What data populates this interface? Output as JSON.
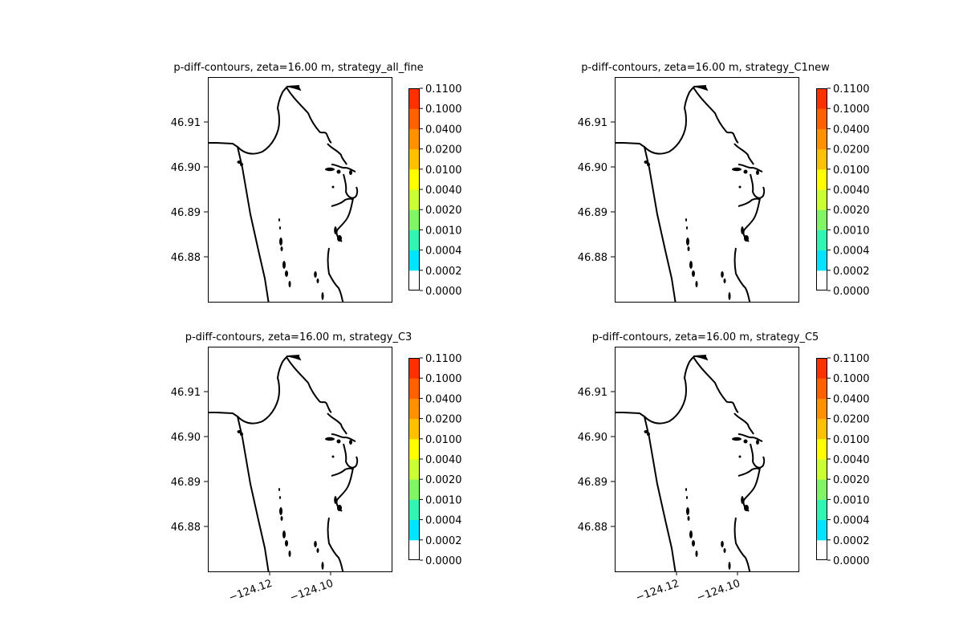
{
  "chart_data": [
    {
      "type": "contour",
      "title": "p-diff-contours, zeta=16.00 m, strategy_all_fine",
      "yticks": [
        "46.91",
        "46.90",
        "46.89",
        "46.88"
      ],
      "ytick_values": [
        46.91,
        46.9,
        46.89,
        46.88
      ],
      "xticks": [],
      "xtick_values": [],
      "ylim": [
        46.8702,
        46.9198
      ],
      "xlim": [
        -124.1395,
        -124.0795
      ],
      "filled_values": []
    },
    {
      "type": "contour",
      "title": "p-diff-contours, zeta=16.00 m, strategy_C1new",
      "yticks": [
        "46.91",
        "46.90",
        "46.89",
        "46.88"
      ],
      "ytick_values": [
        46.91,
        46.9,
        46.89,
        46.88
      ],
      "xticks": [],
      "xtick_values": [],
      "ylim": [
        46.8702,
        46.9198
      ],
      "xlim": [
        -124.1395,
        -124.0795
      ],
      "filled_values": []
    },
    {
      "type": "contour",
      "title": "p-diff-contours, zeta=16.00 m, strategy_C3",
      "yticks": [
        "46.91",
        "46.90",
        "46.89",
        "46.88"
      ],
      "ytick_values": [
        46.91,
        46.9,
        46.89,
        46.88
      ],
      "xticks": [
        "−124.12",
        "−124.10"
      ],
      "xtick_values": [
        -124.12,
        -124.1
      ],
      "ylim": [
        46.8702,
        46.9198
      ],
      "xlim": [
        -124.1395,
        -124.0795
      ],
      "filled_values": []
    },
    {
      "type": "contour",
      "title": "p-diff-contours, zeta=16.00 m, strategy_C5",
      "yticks": [
        "46.91",
        "46.90",
        "46.89",
        "46.88"
      ],
      "ytick_values": [
        46.91,
        46.9,
        46.89,
        46.88
      ],
      "xticks": [
        "−124.12",
        "−124.10"
      ],
      "xtick_values": [
        -124.12,
        -124.1
      ],
      "ylim": [
        46.8702,
        46.9198
      ],
      "xlim": [
        -124.1395,
        -124.0795
      ],
      "filled_values": []
    }
  ],
  "colorbar": {
    "levels": [
      "0.0000",
      "0.0002",
      "0.0004",
      "0.0010",
      "0.0020",
      "0.0040",
      "0.0100",
      "0.0200",
      "0.0400",
      "0.1000",
      "0.1100"
    ],
    "colors": [
      "#ffffff",
      "#00e5ff",
      "#33f5b3",
      "#80f566",
      "#ccff33",
      "#ffff00",
      "#ffc000",
      "#ff9000",
      "#ff6000",
      "#ff3000",
      "#ee0000"
    ]
  },
  "colors": {
    "coastline": "#000000",
    "axes": "#000000",
    "background": "#ffffff"
  }
}
